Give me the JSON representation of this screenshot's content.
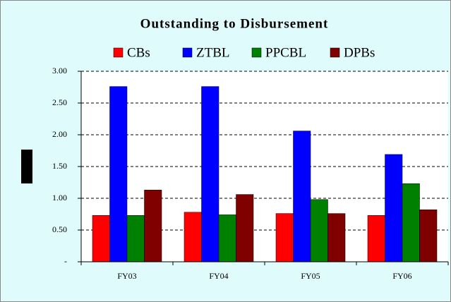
{
  "chart_data": {
    "type": "bar",
    "title": "Outstanding to Disbursement",
    "categories": [
      "FY03",
      "FY04",
      "FY05",
      "FY06"
    ],
    "series": [
      {
        "name": "CBs",
        "color": "#ff0000",
        "values": [
          0.73,
          0.78,
          0.76,
          0.73
        ]
      },
      {
        "name": "ZTBL",
        "color": "#0000ff",
        "values": [
          2.76,
          2.76,
          2.06,
          1.69
        ]
      },
      {
        "name": "PPCBL",
        "color": "#008000",
        "values": [
          0.73,
          0.74,
          0.98,
          1.23
        ]
      },
      {
        "name": "DPBs",
        "color": "#800000",
        "values": [
          1.13,
          1.06,
          0.76,
          0.82
        ]
      }
    ],
    "ylim": [
      0,
      3
    ],
    "yticks": [
      {
        "value": 0,
        "label": "-"
      },
      {
        "value": 0.5,
        "label": "0.50"
      },
      {
        "value": 1,
        "label": "1.00"
      },
      {
        "value": 1.5,
        "label": "1.50"
      },
      {
        "value": 2,
        "label": "2.00"
      },
      {
        "value": 2.5,
        "label": "2.50"
      },
      {
        "value": 3,
        "label": "3.00"
      }
    ],
    "grid": true
  }
}
